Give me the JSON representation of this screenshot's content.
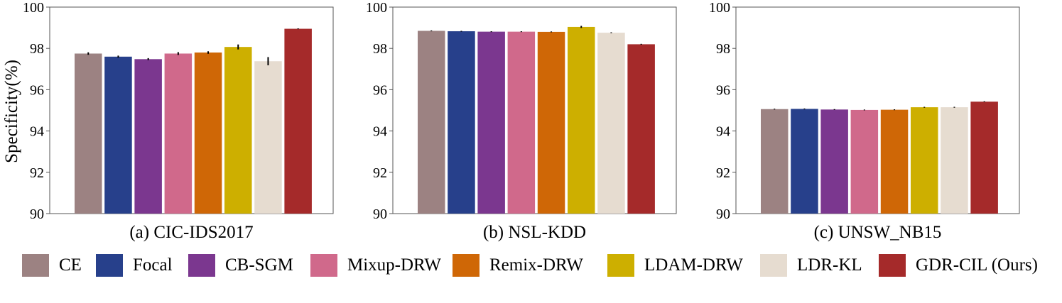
{
  "y_axis_label": "Specificity(%)",
  "methods": [
    "CE",
    "Focal",
    "CB-SGM",
    "Mixup-DRW",
    "Remix-DRW",
    "LDAM-DRW",
    "LDR-KL",
    "GDR-CIL (Ours)"
  ],
  "colors": {
    "CE": "#9c8282",
    "Focal": "#27408b",
    "CB-SGM": "#7b378f",
    "Mixup-DRW": "#d0698b",
    "Remix-DRW": "#cf6706",
    "LDAM-DRW": "#cdaf00",
    "LDR-KL": "#e6dcd0",
    "GDR-CIL (Ours)": "#a52a2a"
  },
  "chart_data": [
    {
      "type": "bar",
      "title": "(a) CIC-IDS2017",
      "ylabel": "Specificity(%)",
      "ylim": [
        90,
        100
      ],
      "yticks": [
        "90",
        "92",
        "94",
        "96",
        "98",
        "100"
      ],
      "categories": [
        "CE",
        "Focal",
        "CB-SGM",
        "Mixup-DRW",
        "Remix-DRW",
        "LDAM-DRW",
        "LDR-KL",
        "GDR-CIL (Ours)"
      ],
      "values": [
        97.75,
        97.6,
        97.48,
        97.75,
        97.8,
        98.07,
        97.38,
        98.95
      ],
      "errors": [
        0.06,
        0.05,
        0.05,
        0.07,
        0.06,
        0.12,
        0.2,
        0.02
      ]
    },
    {
      "type": "bar",
      "title": "(b) NSL-KDD",
      "ylabel": "",
      "ylim": [
        90,
        100
      ],
      "yticks": [
        "90",
        "92",
        "94",
        "96",
        "98",
        "100"
      ],
      "categories": [
        "CE",
        "Focal",
        "CB-SGM",
        "Mixup-DRW",
        "Remix-DRW",
        "LDAM-DRW",
        "LDR-KL",
        "GDR-CIL (Ours)"
      ],
      "values": [
        98.85,
        98.83,
        98.81,
        98.81,
        98.8,
        99.04,
        98.76,
        98.2
      ],
      "errors": [
        0.02,
        0.02,
        0.02,
        0.02,
        0.02,
        0.05,
        0.02,
        0.02
      ]
    },
    {
      "type": "bar",
      "title": "(c) UNSW_NB15",
      "ylabel": "",
      "ylim": [
        90,
        100
      ],
      "yticks": [
        "90",
        "92",
        "94",
        "96",
        "98",
        "100"
      ],
      "categories": [
        "CE",
        "Focal",
        "CB-SGM",
        "Mixup-DRW",
        "Remix-DRW",
        "LDAM-DRW",
        "LDR-KL",
        "GDR-CIL (Ours)"
      ],
      "values": [
        95.06,
        95.07,
        95.04,
        95.02,
        95.03,
        95.15,
        95.15,
        95.42
      ],
      "errors": [
        0.02,
        0.02,
        0.02,
        0.02,
        0.02,
        0.02,
        0.02,
        0.02
      ]
    }
  ]
}
